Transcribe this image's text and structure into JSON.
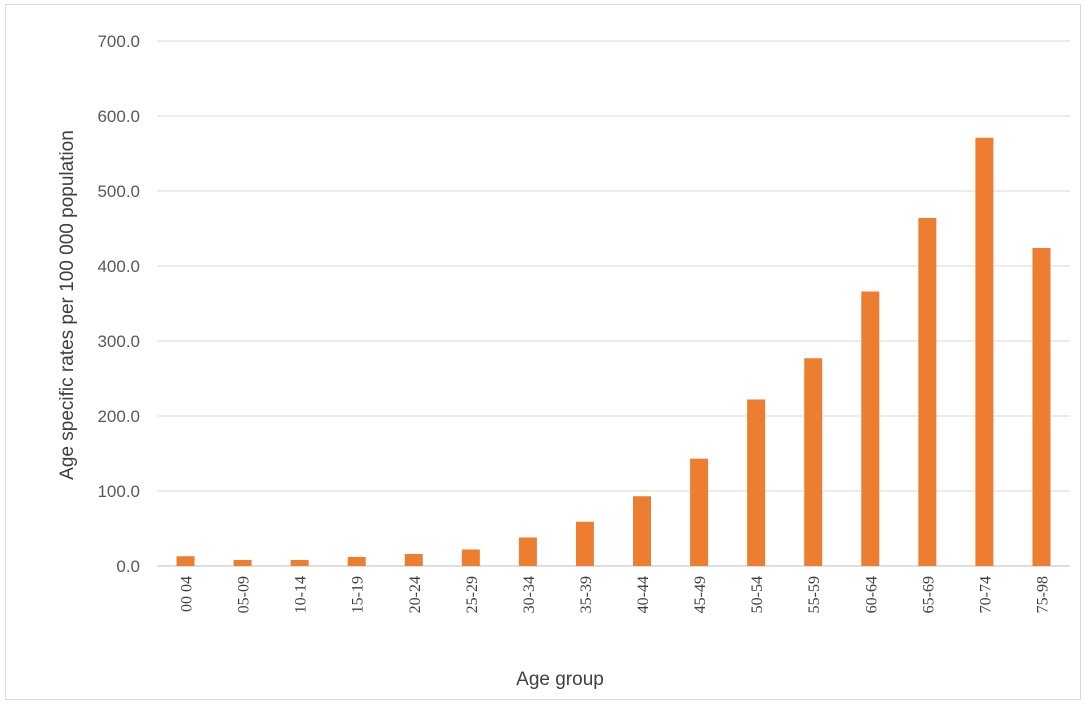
{
  "chart_data": {
    "type": "bar",
    "title": "",
    "xlabel": "Age group",
    "ylabel": "Age specific rates per 100 000 population",
    "ylim": [
      0,
      700
    ],
    "yticks": [
      "0.0",
      "100.0",
      "200.0",
      "300.0",
      "400.0",
      "500.0",
      "600.0",
      "700.0"
    ],
    "categories": [
      "00 04",
      "05-09",
      "10-14",
      "15-19",
      "20-24",
      "25-29",
      "30-34",
      "35-39",
      "40-44",
      "45-49",
      "50-54",
      "55-59",
      "60-64",
      "65-69",
      "70-74",
      "75-98"
    ],
    "values": [
      13,
      8,
      8,
      12,
      16,
      22,
      38,
      59,
      93,
      143,
      222,
      277,
      366,
      464,
      571,
      424
    ],
    "grid": true,
    "legend": "none",
    "colors": {
      "bar": "#ed7d31",
      "grid": "#d9d9d9"
    }
  }
}
